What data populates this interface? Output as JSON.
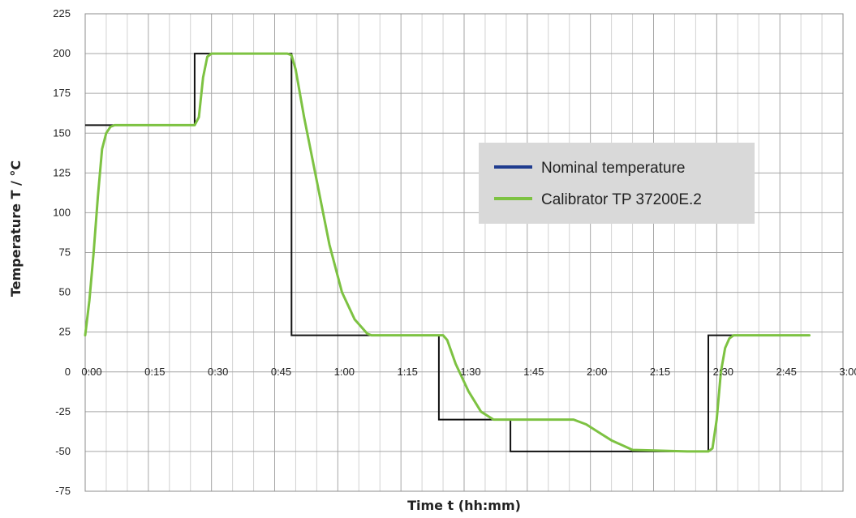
{
  "chart_data": {
    "type": "line",
    "xlabel": "Time t (hh:mm)",
    "ylabel": "Temperature  T / °C",
    "xlim": [
      0,
      180
    ],
    "ylim": [
      -75,
      225
    ],
    "x_ticks": [
      0,
      15,
      30,
      45,
      60,
      75,
      90,
      105,
      120,
      135,
      150,
      165,
      180
    ],
    "x_tick_labels": [
      "0:00",
      "0:15",
      "0:30",
      "0:45",
      "1:00",
      "1:15",
      "1:30",
      "1:45",
      "2:00",
      "2:15",
      "2:30",
      "2:45",
      "3:00"
    ],
    "y_ticks": [
      -75,
      -50,
      -25,
      0,
      25,
      50,
      75,
      100,
      125,
      150,
      175,
      200,
      225
    ],
    "grid": true,
    "x_minor_grid_step": 5,
    "legend_position": "center-right",
    "series": [
      {
        "name": "Nominal temperature",
        "legend_color": "#1f3c8f",
        "line_color": "#111111",
        "x": [
          0,
          26,
          26,
          30,
          30,
          49,
          49,
          68,
          68,
          84,
          84,
          101,
          101,
          120,
          120,
          148,
          148,
          172
        ],
        "y": [
          155,
          155,
          200,
          200,
          200,
          200,
          23,
          23,
          23,
          23,
          -30,
          -30,
          -50,
          -50,
          -50,
          -50,
          23,
          23
        ]
      },
      {
        "name": "Calibrator TP 37200E.2",
        "color": "#7dc242",
        "x": [
          0,
          1,
          2,
          3,
          4,
          5,
          6,
          7,
          8,
          10,
          15,
          20,
          26,
          27,
          28,
          29,
          30,
          31,
          40,
          48,
          49,
          50,
          52,
          55,
          58,
          61,
          64,
          67,
          68,
          70,
          75,
          80,
          85,
          86,
          88,
          91,
          94,
          97,
          100,
          104,
          110,
          113,
          116,
          119,
          122,
          125,
          130,
          143,
          148,
          149,
          150,
          151,
          152,
          153,
          154,
          160,
          172
        ],
        "y": [
          23,
          45,
          75,
          110,
          140,
          150,
          154,
          155,
          155,
          155,
          155,
          155,
          155,
          160,
          185,
          198,
          200,
          200,
          200,
          200,
          199,
          190,
          160,
          120,
          80,
          50,
          33,
          24,
          23,
          23,
          23,
          23,
          23,
          20,
          5,
          -12,
          -25,
          -30,
          -30,
          -30,
          -30,
          -30,
          -30,
          -33,
          -38,
          -43,
          -49,
          -50,
          -50,
          -48,
          -30,
          0,
          15,
          21,
          23,
          23,
          23
        ]
      }
    ]
  }
}
